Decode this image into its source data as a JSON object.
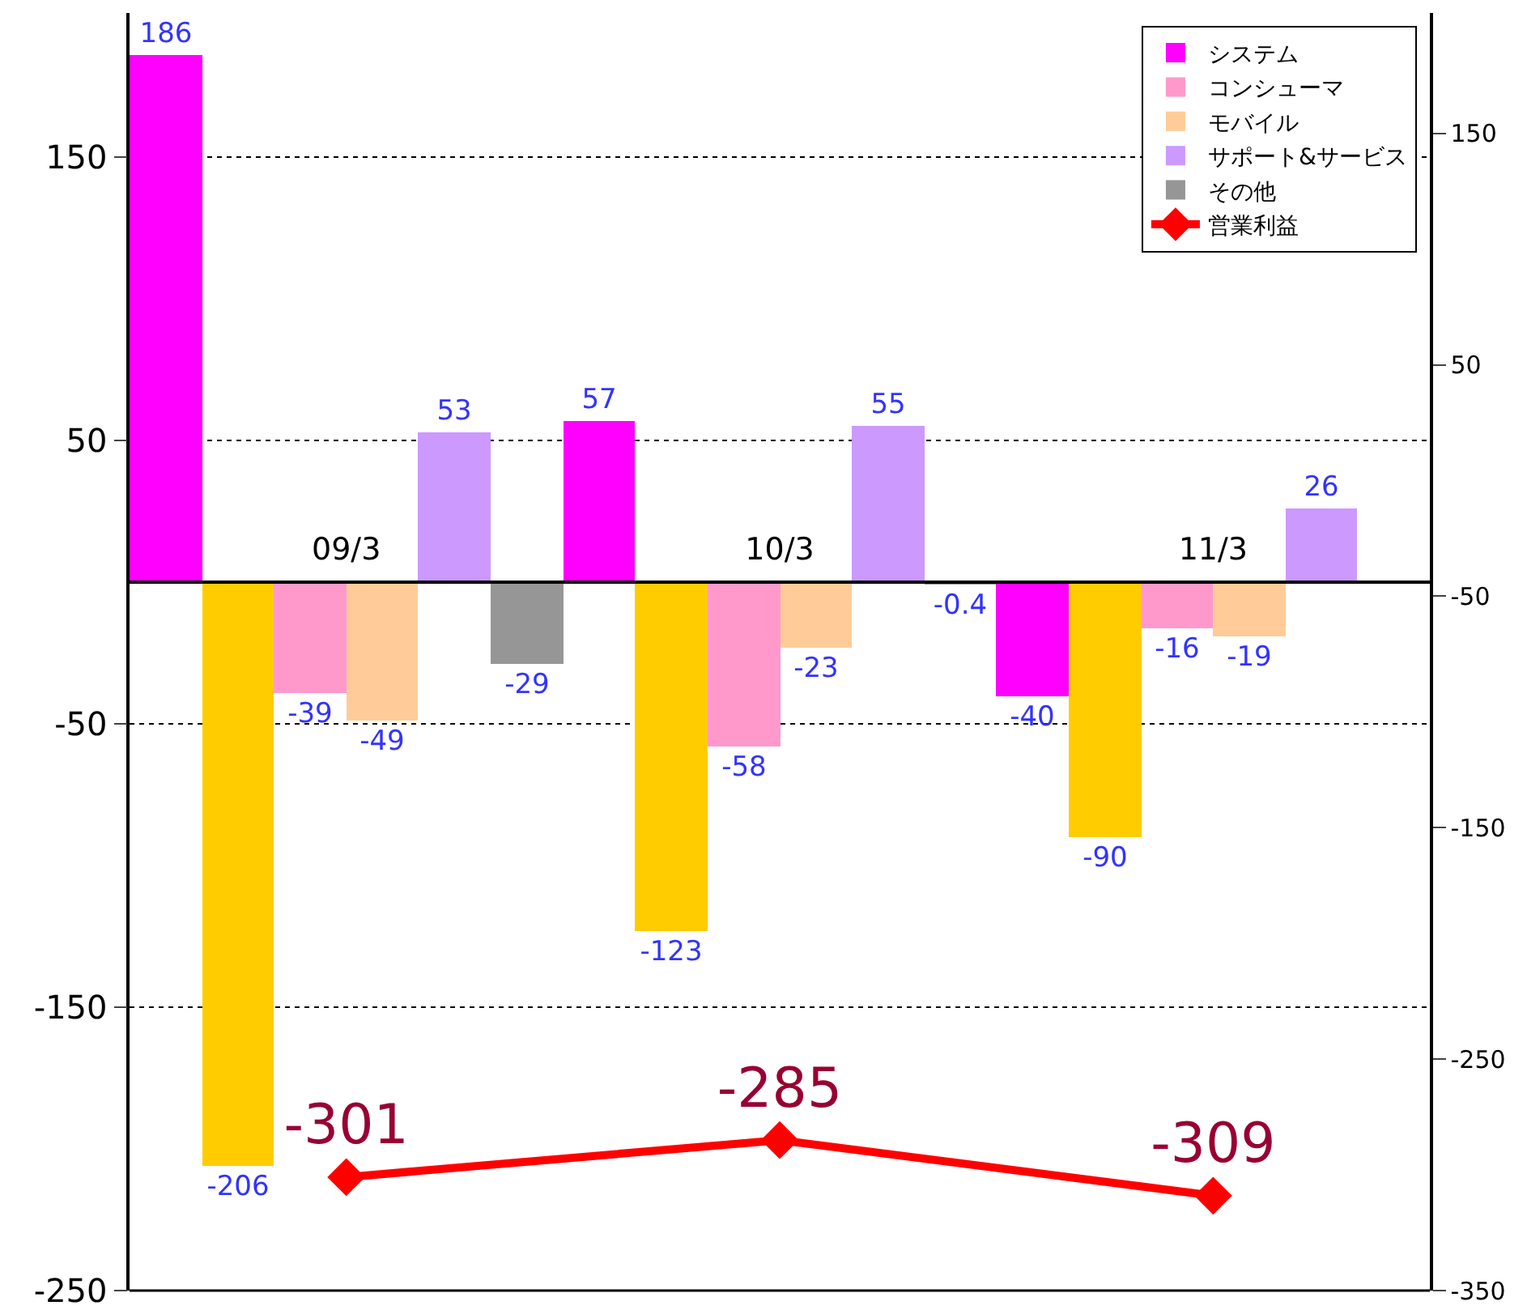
{
  "chart_data": {
    "type": "bar",
    "categories": [
      "09/3",
      "10/3",
      "11/3"
    ],
    "series": [
      {
        "name": "システム",
        "color": "#ff00ff",
        "values": [
          186,
          57,
          -40
        ]
      },
      {
        "color": "#ffcc00",
        "values": [
          -206,
          -123,
          -90
        ]
      },
      {
        "name": "コンシューマ",
        "color": "#ff99cc",
        "values": [
          -39,
          -58,
          -16
        ]
      },
      {
        "name": "モバイル",
        "color": "#ffcc99",
        "values": [
          -49,
          -23,
          -19
        ]
      },
      {
        "name": "サポート&サービス",
        "color": "#cc99ff",
        "values": [
          53,
          55,
          26
        ]
      },
      {
        "name": "その他",
        "color": "#969696",
        "values": [
          -29,
          -0.4,
          null
        ]
      },
      {
        "name": "営業利益",
        "type": "line",
        "axis": "y2",
        "color": "#ff0000",
        "marker": "diamond",
        "values": [
          -301,
          -285,
          -309
        ]
      }
    ],
    "ylim": [
      -250,
      201
    ],
    "yticks": [
      -250,
      -150,
      -50,
      50,
      150
    ],
    "y2lim": [
      -350,
      202
    ],
    "y2ticks": [
      -350,
      -250,
      -150,
      -50,
      50,
      150
    ],
    "grid": "y",
    "legend": "top right",
    "data_labels": true
  }
}
